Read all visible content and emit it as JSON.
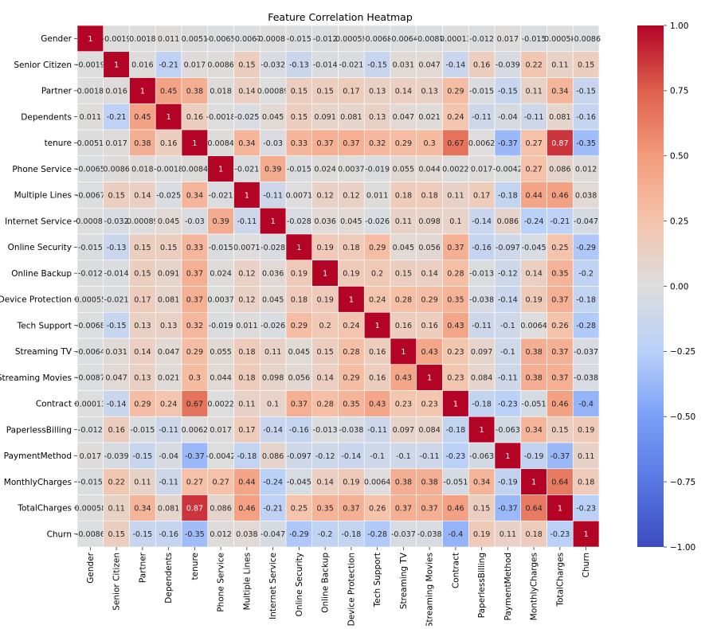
{
  "chart_data": {
    "type": "heatmap",
    "title": "Feature Correlation Heatmap",
    "xlabel": "",
    "ylabel": "",
    "labels": [
      "Gender",
      "Senior Citizen",
      "Partner",
      "Dependents",
      "tenure",
      "Phone Service",
      "Multiple Lines",
      "Internet Service",
      "Online Security",
      "Online Backup",
      "Device Protection",
      "Tech Support",
      "Streaming TV",
      "Streaming Movies",
      "Contract",
      "PaperlessBilling",
      "PaymentMethod",
      "MonthlyCharges",
      "TotalCharges",
      "Churn"
    ],
    "cell_labels": [
      [
        "1",
        "-0.0019",
        "0.0018",
        "0.011",
        "0.0051",
        "-0.0065",
        "-0.0067",
        "-0.00086",
        "-0.015",
        "-0.012",
        "0.00055",
        "-0.0068",
        "-0.0064",
        "-0.0087",
        "0.00013",
        "-0.012",
        "0.017",
        "-0.015",
        "0.00058",
        "-0.0086"
      ],
      [
        "-0.0019",
        "1",
        "0.016",
        "-0.21",
        "0.017",
        "0.0086",
        "0.15",
        "-0.032",
        "-0.13",
        "-0.014",
        "-0.021",
        "-0.15",
        "0.031",
        "0.047",
        "-0.14",
        "0.16",
        "-0.039",
        "0.22",
        "0.11",
        "0.15"
      ],
      [
        "0.0018",
        "0.016",
        "1",
        "0.45",
        "0.38",
        "0.018",
        "0.14",
        "0.00089",
        "0.15",
        "0.15",
        "0.17",
        "0.13",
        "0.14",
        "0.13",
        "0.29",
        "-0.015",
        "-0.15",
        "0.11",
        "0.34",
        "-0.15"
      ],
      [
        "0.011",
        "-0.21",
        "0.45",
        "1",
        "0.16",
        "-0.0018",
        "-0.025",
        "0.045",
        "0.15",
        "0.091",
        "0.081",
        "0.13",
        "0.047",
        "0.021",
        "0.24",
        "-0.11",
        "-0.04",
        "-0.11",
        "0.081",
        "-0.16"
      ],
      [
        "0.0051",
        "0.017",
        "0.38",
        "0.16",
        "1",
        "0.0084",
        "0.34",
        "-0.03",
        "0.33",
        "0.37",
        "0.37",
        "0.32",
        "0.29",
        "0.3",
        "0.67",
        "0.0062",
        "-0.37",
        "0.27",
        "0.87",
        "-0.35"
      ],
      [
        "-0.0065",
        "0.0086",
        "0.018",
        "-0.0018",
        "0.0084",
        "1",
        "-0.021",
        "0.39",
        "-0.015",
        "0.024",
        "0.0037",
        "-0.019",
        "0.055",
        "0.044",
        "0.0022",
        "0.017",
        "-0.0042",
        "0.27",
        "0.086",
        "0.012"
      ],
      [
        "-0.0067",
        "0.15",
        "0.14",
        "-0.025",
        "0.34",
        "-0.021",
        "1",
        "-0.11",
        "0.0071",
        "0.12",
        "0.12",
        "0.011",
        "0.18",
        "0.18",
        "0.11",
        "0.17",
        "-0.18",
        "0.44",
        "0.46",
        "0.038"
      ],
      [
        "-0.00086",
        "-0.032",
        "0.00089",
        "0.045",
        "-0.03",
        "0.39",
        "-0.11",
        "1",
        "-0.028",
        "0.036",
        "0.045",
        "-0.026",
        "0.11",
        "0.098",
        "0.1",
        "-0.14",
        "0.086",
        "-0.24",
        "-0.21",
        "-0.047"
      ],
      [
        "-0.015",
        "-0.13",
        "0.15",
        "0.15",
        "0.33",
        "-0.015",
        "0.0071",
        "-0.028",
        "1",
        "0.19",
        "0.18",
        "0.29",
        "0.045",
        "0.056",
        "0.37",
        "-0.16",
        "-0.097",
        "-0.045",
        "0.25",
        "-0.29"
      ],
      [
        "-0.012",
        "-0.014",
        "0.15",
        "0.091",
        "0.37",
        "0.024",
        "0.12",
        "0.036",
        "0.19",
        "1",
        "0.19",
        "0.2",
        "0.15",
        "0.14",
        "0.28",
        "-0.013",
        "-0.12",
        "0.14",
        "0.35",
        "-0.2"
      ],
      [
        "0.00055",
        "-0.021",
        "0.17",
        "0.081",
        "0.37",
        "0.0037",
        "0.12",
        "0.045",
        "0.18",
        "0.19",
        "1",
        "0.24",
        "0.28",
        "0.29",
        "0.35",
        "-0.038",
        "-0.14",
        "0.19",
        "0.37",
        "-0.18"
      ],
      [
        "-0.0068",
        "-0.15",
        "0.13",
        "0.13",
        "0.32",
        "-0.019",
        "0.011",
        "-0.026",
        "0.29",
        "0.2",
        "0.24",
        "1",
        "0.16",
        "0.16",
        "0.43",
        "-0.11",
        "-0.1",
        "0.0064",
        "0.26",
        "-0.28"
      ],
      [
        "-0.0064",
        "0.031",
        "0.14",
        "0.047",
        "0.29",
        "0.055",
        "0.18",
        "0.11",
        "0.045",
        "0.15",
        "0.28",
        "0.16",
        "1",
        "0.43",
        "0.23",
        "0.097",
        "-0.1",
        "0.38",
        "0.37",
        "-0.037"
      ],
      [
        "-0.0087",
        "0.047",
        "0.13",
        "0.021",
        "0.3",
        "0.044",
        "0.18",
        "0.098",
        "0.056",
        "0.14",
        "0.29",
        "0.16",
        "0.43",
        "1",
        "0.23",
        "0.084",
        "-0.11",
        "0.38",
        "0.37",
        "-0.038"
      ],
      [
        "0.00013",
        "-0.14",
        "0.29",
        "0.24",
        "0.67",
        "0.0022",
        "0.11",
        "0.1",
        "0.37",
        "0.28",
        "0.35",
        "0.43",
        "0.23",
        "0.23",
        "1",
        "-0.18",
        "-0.23",
        "-0.051",
        "0.46",
        "-0.4"
      ],
      [
        "-0.012",
        "0.16",
        "-0.015",
        "-0.11",
        "0.0062",
        "0.017",
        "0.17",
        "-0.14",
        "-0.16",
        "-0.013",
        "-0.038",
        "-0.11",
        "0.097",
        "0.084",
        "-0.18",
        "1",
        "-0.063",
        "0.34",
        "0.15",
        "0.19"
      ],
      [
        "0.017",
        "-0.039",
        "-0.15",
        "-0.04",
        "-0.37",
        "-0.0042",
        "-0.18",
        "0.086",
        "-0.097",
        "-0.12",
        "-0.14",
        "-0.1",
        "-0.1",
        "-0.11",
        "-0.23",
        "-0.063",
        "1",
        "-0.19",
        "-0.37",
        "0.11"
      ],
      [
        "-0.015",
        "0.22",
        "0.11",
        "-0.11",
        "0.27",
        "0.27",
        "0.44",
        "-0.24",
        "-0.045",
        "0.14",
        "0.19",
        "0.0064",
        "0.38",
        "0.38",
        "-0.051",
        "0.34",
        "-0.19",
        "1",
        "0.64",
        "0.18"
      ],
      [
        "0.00058",
        "0.11",
        "0.34",
        "0.081",
        "0.87",
        "0.086",
        "0.46",
        "-0.21",
        "0.25",
        "0.35",
        "0.37",
        "0.26",
        "0.37",
        "0.37",
        "0.46",
        "0.15",
        "-0.37",
        "0.64",
        "1",
        "-0.23"
      ],
      [
        "-0.0086",
        "0.15",
        "-0.15",
        "-0.16",
        "-0.35",
        "0.012",
        "0.038",
        "-0.047",
        "-0.29",
        "-0.2",
        "-0.18",
        "-0.28",
        "-0.037",
        "-0.038",
        "-0.4",
        "0.19",
        "0.11",
        "0.18",
        "-0.23",
        "1"
      ]
    ],
    "colorbar": {
      "min": -1.0,
      "max": 1.0,
      "ticks": [
        "1.00",
        "0.75",
        "0.50",
        "0.25",
        "0.00",
        "−0.25",
        "−0.50",
        "−0.75",
        "−1.00"
      ],
      "tick_values": [
        1.0,
        0.75,
        0.5,
        0.25,
        0.0,
        -0.25,
        -0.5,
        -0.75,
        -1.0
      ]
    },
    "colormap": "coolwarm",
    "colormap_stops": [
      "#3b4cc0",
      "#dddddd",
      "#b40426"
    ],
    "grid": false,
    "legend_placement": "right"
  }
}
